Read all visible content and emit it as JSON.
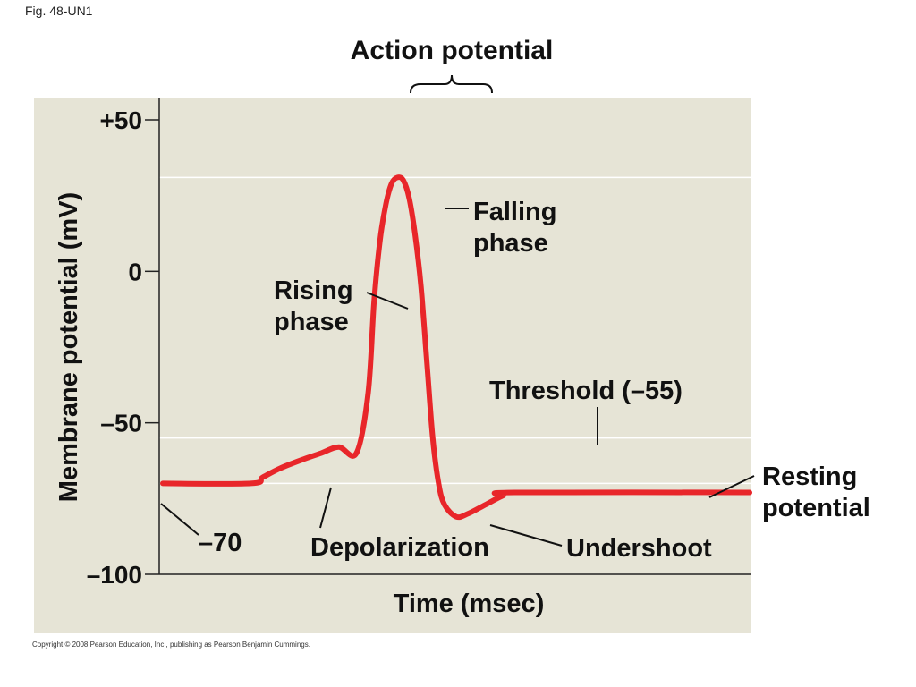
{
  "figure_label": "Fig. 48-UN1",
  "copyright": "Copyright © 2008 Pearson Education, Inc., publishing as Pearson Benjamin Cummings.",
  "colors": {
    "background": "#ffffff",
    "plot_background": "#e6e4d6",
    "trace": "#e8262a",
    "gridline": "#ffffff",
    "text": "#111111"
  },
  "chart_data": {
    "type": "line",
    "title": "Action potential",
    "xlabel": "Time (msec)",
    "ylabel": "Membrane potential (mV)",
    "ylim": [
      -100,
      50
    ],
    "yticks": [
      {
        "value": 50,
        "label": "+50"
      },
      {
        "value": 0,
        "label": "0"
      },
      {
        "value": -50,
        "label": "–50"
      },
      {
        "value": -100,
        "label": "–100"
      }
    ],
    "gridlines_y": [
      31,
      -55,
      -70
    ],
    "x_units_shown": false,
    "series": [
      {
        "points": [
          [
            0,
            -70
          ],
          [
            15,
            -70
          ],
          [
            17,
            -68
          ],
          [
            20,
            -65
          ],
          [
            24,
            -62
          ],
          [
            27,
            -60
          ],
          [
            30,
            -58
          ],
          [
            33,
            -60
          ],
          [
            35,
            -40
          ],
          [
            36,
            -10
          ],
          [
            37,
            10
          ],
          [
            38,
            22
          ],
          [
            39,
            29
          ],
          [
            40,
            31
          ],
          [
            41,
            30
          ],
          [
            42,
            24
          ],
          [
            43,
            12
          ],
          [
            44,
            -5
          ],
          [
            45,
            -30
          ],
          [
            46,
            -55
          ],
          [
            47,
            -70
          ],
          [
            48,
            -77
          ],
          [
            50,
            -81
          ],
          [
            52,
            -80
          ],
          [
            55,
            -77
          ],
          [
            58,
            -74
          ],
          [
            60,
            -73
          ],
          [
            100,
            -73
          ]
        ]
      }
    ],
    "annotations": {
      "bracket_label": "Action potential",
      "falling_phase": "Falling\nphase",
      "falling_phase_lines": [
        "Falling",
        "phase"
      ],
      "rising_phase_lines": [
        "Rising",
        "phase"
      ],
      "threshold": "Threshold (–55)",
      "resting_lines": [
        "Resting",
        "potential"
      ],
      "rest_value": "–70",
      "depolarization": "Depolarization",
      "undershoot": "Undershoot"
    }
  }
}
